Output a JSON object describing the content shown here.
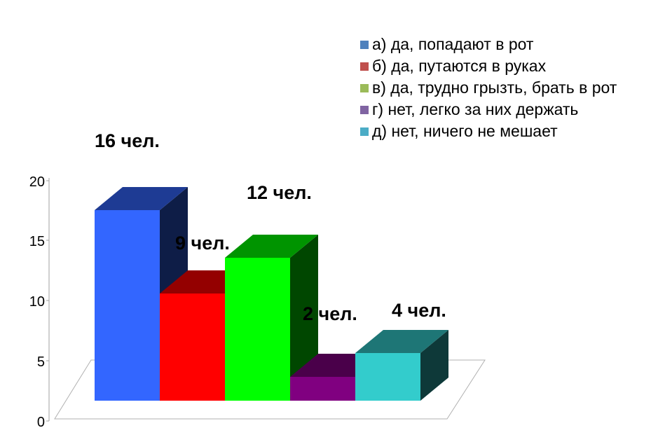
{
  "chart_data": {
    "type": "bar",
    "categories": [
      "а)  да, попадают в рот",
      "б) да, путаются в руках",
      "в) да, трудно грызть, брать в рот",
      "г)  нет, легко за них держать",
      "д) нет, ничего не мешает"
    ],
    "values": [
      16,
      9,
      12,
      2,
      4
    ],
    "data_labels": [
      "16 чел.",
      "9 чел.",
      "12 чел.",
      "2 чел.",
      "4 чел."
    ],
    "colors": [
      "#3366ff",
      "#ff0000",
      "#00ff00",
      "#800080",
      "#33cccc"
    ],
    "legend_colors": [
      "#4f81bd",
      "#c0504d",
      "#9bbb59",
      "#8064a2",
      "#4bacc6"
    ],
    "yticks": [
      "0",
      "5",
      "10",
      "15",
      "20"
    ],
    "ylim": [
      0,
      20
    ],
    "three_d": true,
    "legend_position": "top-right",
    "grid": false
  }
}
